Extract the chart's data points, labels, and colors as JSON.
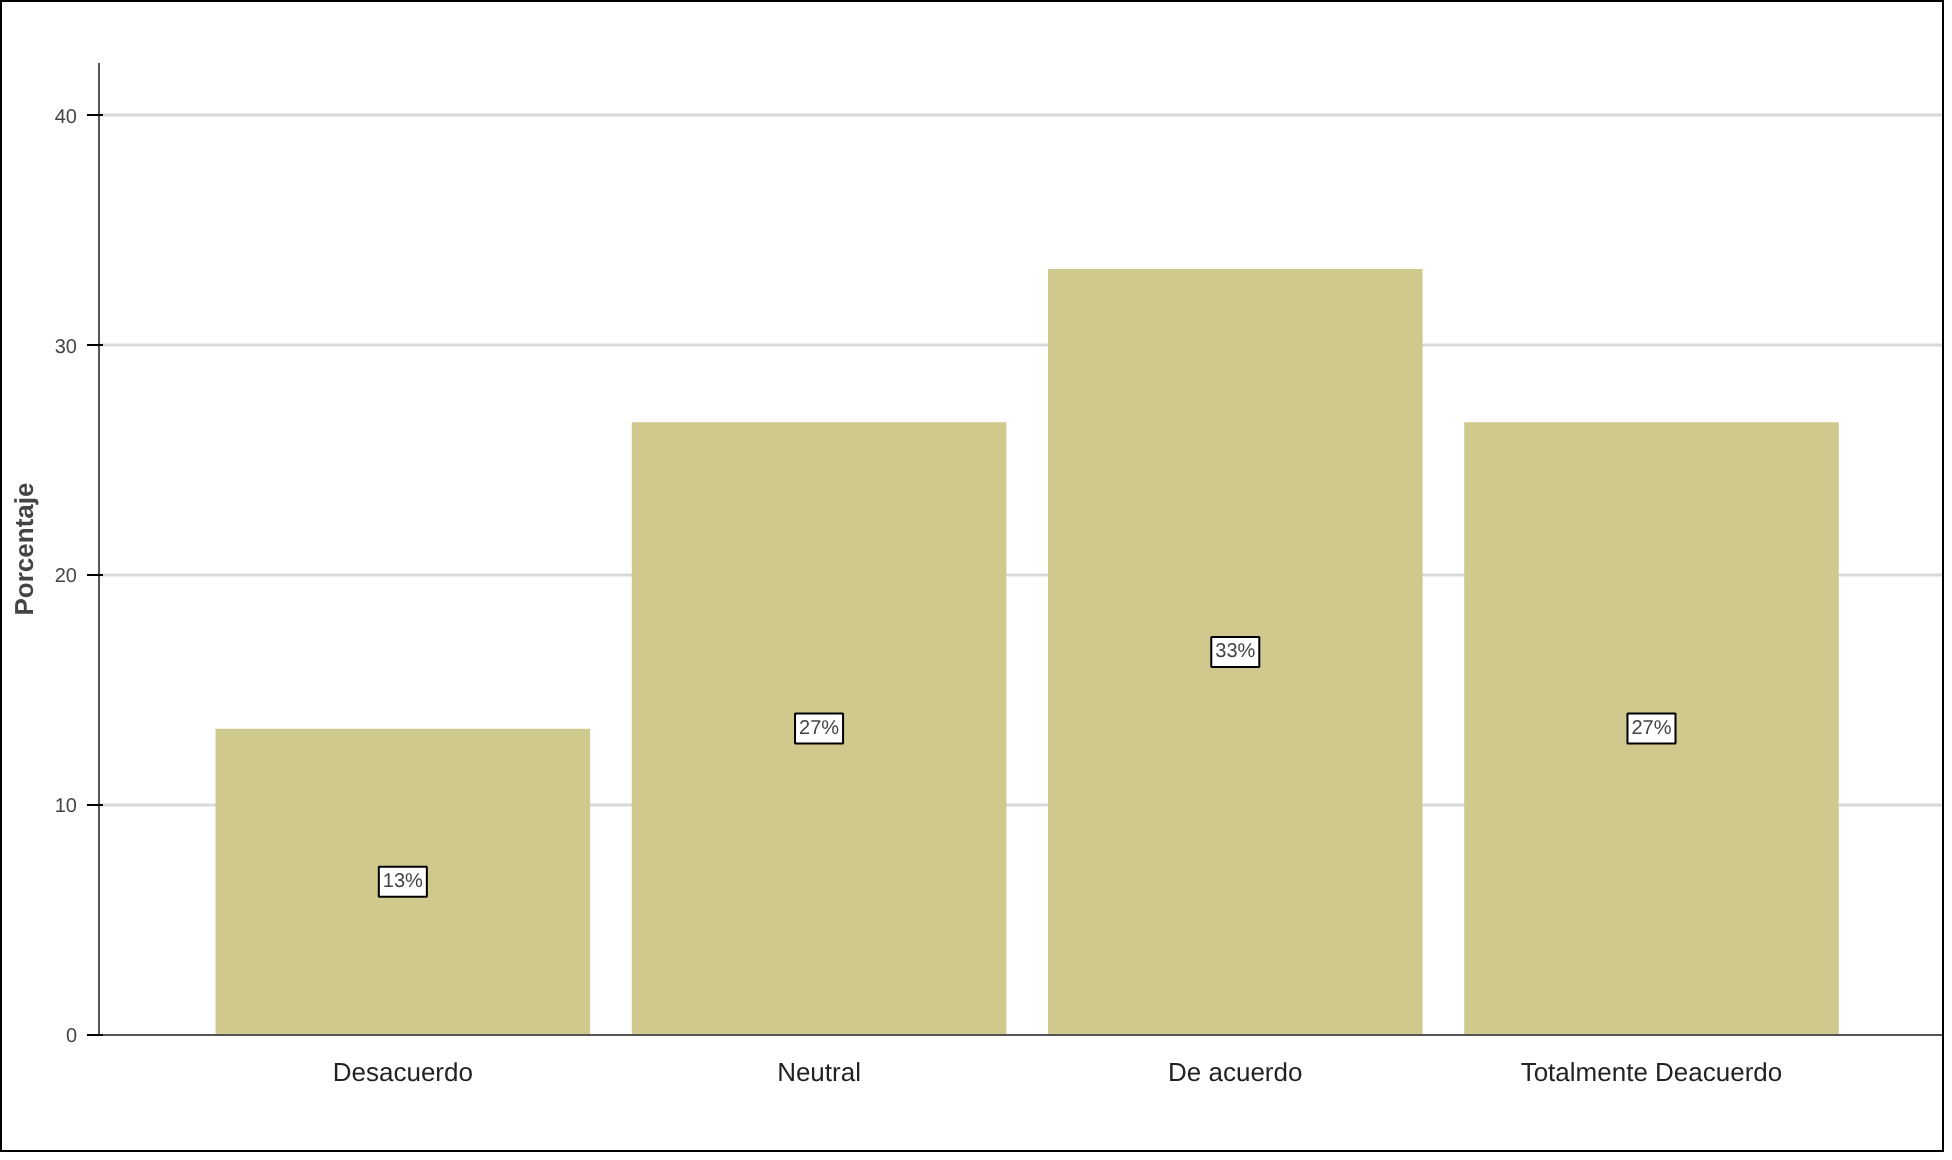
{
  "chart_data": {
    "type": "bar",
    "ylabel": "Porcentaje",
    "categories": [
      "Desacuerdo",
      "Neutral",
      "De acuerdo",
      "Totalmente Deacuerdo"
    ],
    "values": [
      13.33,
      26.67,
      33.33,
      26.67
    ],
    "value_labels": [
      "13%",
      "27%",
      "33%",
      "27%"
    ],
    "color": "#cfc98e",
    "ylim": [
      0,
      42.3
    ],
    "yticks": [
      0,
      10,
      20,
      30,
      40
    ],
    "grid": "y"
  }
}
